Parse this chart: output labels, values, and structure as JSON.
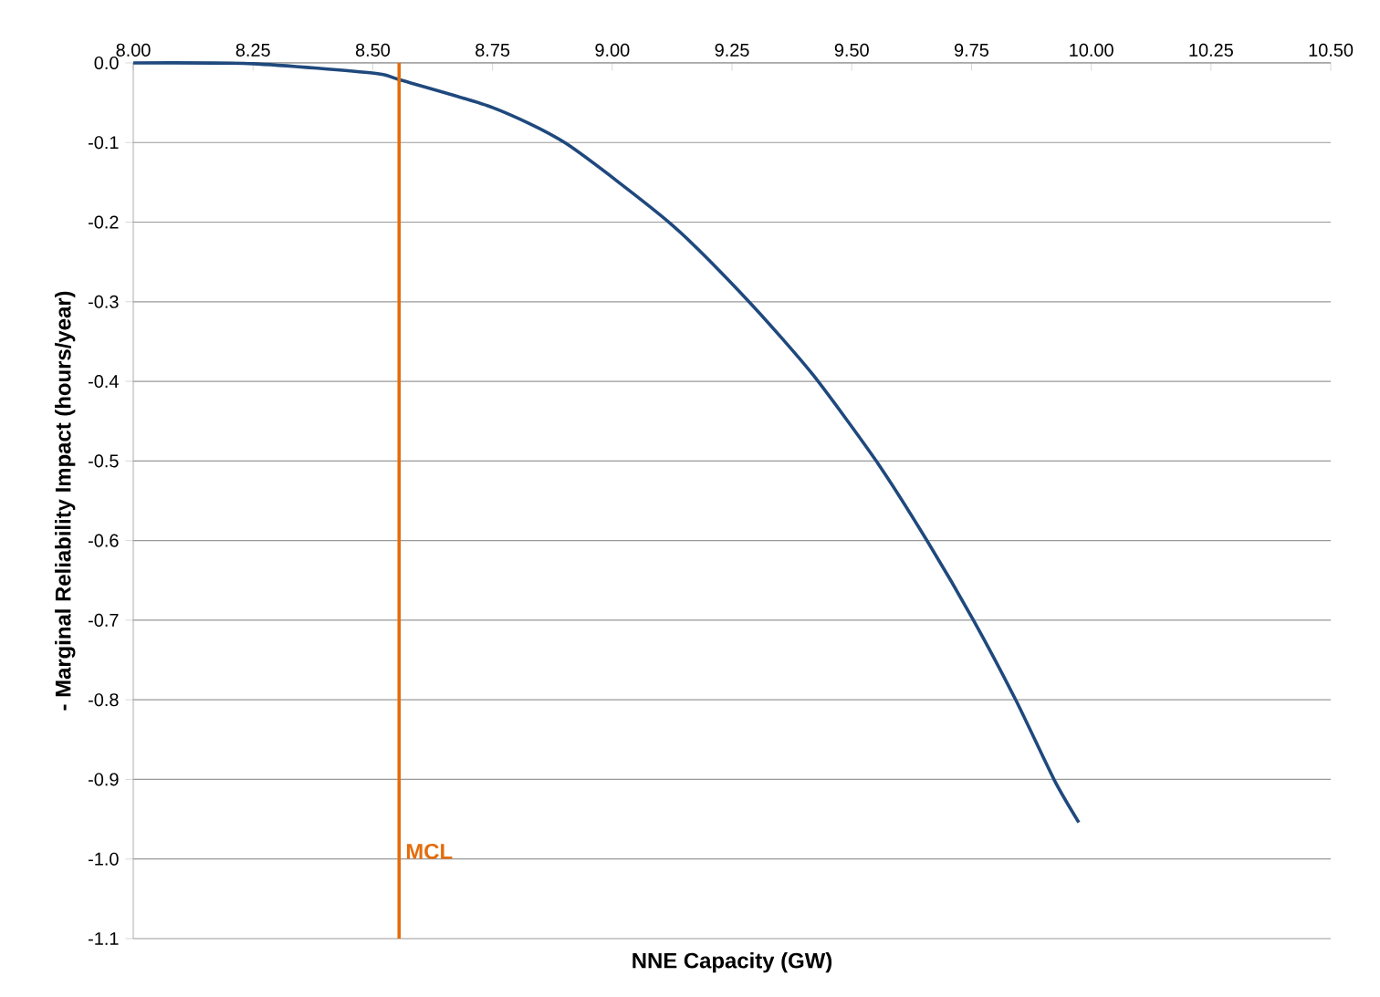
{
  "chart_data": {
    "type": "line",
    "xlabel": "NNE Capacity (GW)",
    "ylabel": "- Marginal Reliability Impact (hours/year)",
    "x": [
      8.0,
      8.25,
      8.503,
      8.555,
      8.75,
      8.903,
      9.122,
      9.284,
      9.418,
      9.551,
      9.656,
      9.754,
      9.843,
      9.923,
      9.974
    ],
    "series": [
      {
        "color": "#1f497d",
        "values": [
          0,
          -0.001,
          -0.013,
          -0.021,
          -0.056,
          -0.101,
          -0.202,
          -0.299,
          -0.391,
          -0.5,
          -0.599,
          -0.7,
          -0.801,
          -0.901,
          -0.954
        ]
      }
    ],
    "xlim": [
      8.0,
      10.5
    ],
    "ylim": [
      -1.1,
      0
    ],
    "xticks": [
      {
        "value": 8.0,
        "label": "8.00"
      },
      8.25,
      {
        "value": 8.5,
        "label": "8.50"
      },
      8.75,
      {
        "value": 9.0,
        "label": "9.00"
      },
      9.25,
      {
        "value": 9.5,
        "label": "9.50"
      },
      9.75,
      {
        "value": 10.0,
        "label": "10.00"
      },
      10.25,
      {
        "value": 10.5,
        "label": "10.50"
      }
    ],
    "yticks": [
      {
        "value": -1.1,
        "label": "-1.1"
      },
      {
        "value": -1.0,
        "label": "-1.0"
      },
      -0.9,
      -0.8,
      -0.7,
      -0.6,
      -0.5,
      -0.4,
      -0.3,
      -0.2,
      -0.1,
      {
        "value": 0,
        "label": "0.0"
      }
    ],
    "grid": "y",
    "ref_lines": [
      {
        "axis": "x",
        "value": 8.555,
        "label": "MCL",
        "color": "#e46c0a"
      }
    ]
  }
}
